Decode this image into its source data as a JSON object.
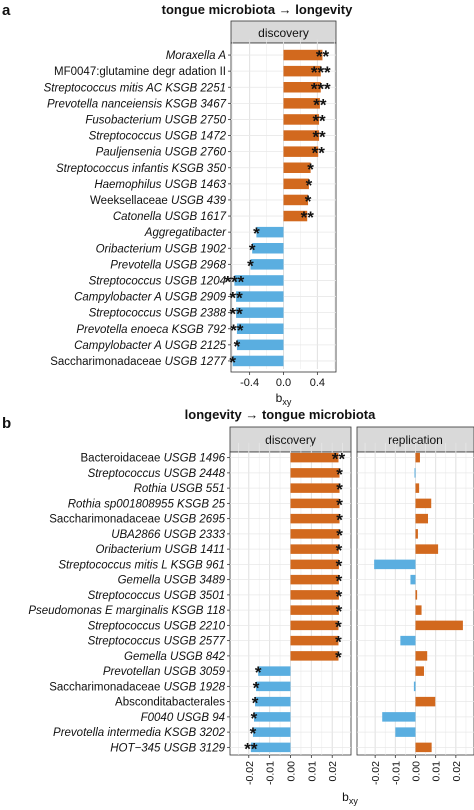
{
  "chart_data": [
    {
      "type": "bar",
      "panel_letter": "a",
      "title": "tongue microbiota → longevity",
      "facets": [
        "discovery"
      ],
      "xlabel": "b",
      "xlabel_sub": "xy",
      "xlim": [
        -0.62,
        0.62
      ],
      "xticks": [
        "-0.4",
        "0.0",
        "0.4"
      ],
      "xtick_values": [
        -0.4,
        0.0,
        0.4
      ],
      "colors": {
        "positive": "#d2691e",
        "negative": "#5aaee0"
      },
      "categories": [
        {
          "pre": "",
          "ital": "Moraxella A",
          "post": ""
        },
        {
          "pre": "MF0047:glutamine degr adation II",
          "ital": "",
          "post": ""
        },
        {
          "pre": "",
          "ital": "Streptococcus mitis AC KSGB 2251",
          "post": ""
        },
        {
          "pre": "",
          "ital": "Prevotella nanceiensis KSGB 3467",
          "post": ""
        },
        {
          "pre": "",
          "ital": "Fusobacterium USGB 2750",
          "post": ""
        },
        {
          "pre": "",
          "ital": "Streptococcus USGB 1472",
          "post": ""
        },
        {
          "pre": "",
          "ital": "Pauljensenia USGB 2760",
          "post": ""
        },
        {
          "pre": "",
          "ital": "Streptococcus infantis KSGB 350",
          "post": ""
        },
        {
          "pre": "",
          "ital": "Haemophilus USGB 1463",
          "post": ""
        },
        {
          "pre": "Weeksellaceae ",
          "ital": "USGB 439",
          "post": ""
        },
        {
          "pre": "",
          "ital": "Catonella USGB 1617",
          "post": ""
        },
        {
          "pre": "",
          "ital": "Aggregatibacter",
          "post": ""
        },
        {
          "pre": "",
          "ital": "Oribacterium USGB 1902",
          "post": ""
        },
        {
          "pre": "",
          "ital": "Prevotella USGB 2968",
          "post": ""
        },
        {
          "pre": "",
          "ital": "Streptococcus USGB 1204",
          "post": ""
        },
        {
          "pre": "",
          "ital": "Campylobacter A USGB 2909",
          "post": ""
        },
        {
          "pre": "",
          "ital": "Streptococcus USGB 2388",
          "post": ""
        },
        {
          "pre": "",
          "ital": "Prevotella enoeca KSGB 792",
          "post": ""
        },
        {
          "pre": "",
          "ital": "Campylobacter A USGB 2125",
          "post": ""
        },
        {
          "pre": "Saccharimonadaceae ",
          "ital": "USGB 1277",
          "post": ""
        }
      ],
      "series": [
        {
          "values": [
            0.46,
            0.44,
            0.44,
            0.43,
            0.42,
            0.42,
            0.41,
            0.32,
            0.3,
            0.29,
            0.28,
            -0.32,
            -0.37,
            -0.39,
            -0.58,
            -0.56,
            -0.56,
            -0.55,
            -0.55,
            -0.6
          ],
          "stars": [
            "**",
            "***",
            "***",
            "**",
            "**",
            "**",
            "**",
            "*",
            "*",
            "*",
            "**",
            "*",
            "*",
            "*",
            "***",
            "**",
            "**",
            "**",
            "*",
            "*"
          ]
        }
      ]
    },
    {
      "type": "bar",
      "panel_letter": "b",
      "title": "longevity → tongue microbiota",
      "facets": [
        "discovery",
        "replication"
      ],
      "xlabel": "b",
      "xlabel_sub": "xy",
      "xlim": [
        -0.029,
        0.029
      ],
      "xticks": [
        "-0.02",
        "-0.01",
        "0.00",
        "0.01",
        "0.02"
      ],
      "xtick_values": [
        -0.02,
        -0.01,
        0.0,
        0.01,
        0.02
      ],
      "colors": {
        "positive": "#d2691e",
        "negative": "#5aaee0"
      },
      "categories": [
        {
          "pre": "Bacteroidaceae ",
          "ital": "USGB 1496",
          "post": ""
        },
        {
          "pre": "",
          "ital": "Streptococcus USGB 2448",
          "post": ""
        },
        {
          "pre": "",
          "ital": "Rothia USGB 551",
          "post": ""
        },
        {
          "pre": "",
          "ital": "Rothia sp001808955 KSGB 25",
          "post": ""
        },
        {
          "pre": "Saccharimonadaceae ",
          "ital": "USGB 2695",
          "post": ""
        },
        {
          "pre": "",
          "ital": "UBA2866 USGB 2333",
          "post": ""
        },
        {
          "pre": "",
          "ital": "Oribacterium USGB 1411",
          "post": ""
        },
        {
          "pre": "",
          "ital": "Streptococcus mitis L KSGB 961",
          "post": ""
        },
        {
          "pre": "",
          "ital": "Gemella USGB 3489",
          "post": ""
        },
        {
          "pre": "",
          "ital": "Streptococcus USGB 3501",
          "post": ""
        },
        {
          "pre": "",
          "ital": "Pseudomonas E marginalis KSGB 118",
          "post": ""
        },
        {
          "pre": "",
          "ital": "Streptococcus USGB 2210",
          "post": ""
        },
        {
          "pre": "",
          "ital": "Streptococcus USGB 2577",
          "post": ""
        },
        {
          "pre": "",
          "ital": "Gemella USGB 842",
          "post": ""
        },
        {
          "pre": "",
          "ital": "Prevotellan USGB 3059",
          "post": ""
        },
        {
          "pre": "Saccharimonadaceae ",
          "ital": "USGB 1928",
          "post": ""
        },
        {
          "pre": "Absconditabacterales",
          "ital": "",
          "post": ""
        },
        {
          "pre": "",
          "ital": "F0040 USGB 94",
          "post": ""
        },
        {
          "pre": "",
          "ital": "Prevotella intermedia KSGB 3202",
          "post": ""
        },
        {
          "pre": "",
          "ital": "HOT−345 USGB 3129",
          "post": ""
        }
      ],
      "series": [
        {
          "name": "discovery",
          "values": [
            0.023,
            0.0235,
            0.0235,
            0.0235,
            0.0235,
            0.0235,
            0.0232,
            0.0232,
            0.0232,
            0.0232,
            0.0232,
            0.023,
            0.023,
            0.023,
            -0.0155,
            -0.0165,
            -0.017,
            -0.0175,
            -0.018,
            -0.019
          ],
          "stars": [
            "**",
            "*",
            "*",
            "*",
            "*",
            "*",
            "*",
            "*",
            "*",
            "*",
            "*",
            "*",
            "*",
            "*",
            "*",
            "*",
            "*",
            "*",
            "*",
            "**"
          ]
        },
        {
          "name": "replication",
          "values": [
            0.0022,
            -0.0005,
            0.0018,
            0.0078,
            0.0062,
            0.0012,
            0.0112,
            -0.0205,
            -0.0025,
            0.0008,
            0.003,
            0.0235,
            -0.0075,
            0.0058,
            0.0042,
            -0.0008,
            0.0098,
            -0.0165,
            -0.01,
            0.008
          ]
        }
      ]
    }
  ]
}
